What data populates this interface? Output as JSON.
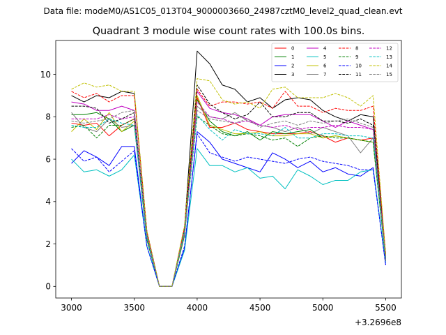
{
  "header": {
    "file_label": "Data file: modeM0/AS1C05_013T04_9000003660_24987cztM0_level2_quad_clean.evt"
  },
  "chart_data": {
    "type": "line",
    "title": "Quadrant 3 module wise count rates with 100.0s bins.",
    "xlabel": "",
    "ylabel": "",
    "x_offset_label": "+3.2696e8",
    "xlim": [
      2875,
      5625
    ],
    "ylim": [
      -0.55,
      11.6
    ],
    "grid": false,
    "legend_position": "top-right",
    "legend_columns": 4,
    "x_ticks": [
      3000,
      3500,
      4000,
      4500,
      5000,
      5500
    ],
    "x_tick_labels": [
      "3000",
      "3500",
      "4000",
      "4500",
      "5000",
      "5500"
    ],
    "y_ticks": [
      0,
      2,
      4,
      6,
      8,
      10
    ],
    "y_tick_labels": [
      "0",
      "2",
      "4",
      "6",
      "8",
      "10"
    ],
    "x": [
      3000,
      3100,
      3200,
      3300,
      3400,
      3500,
      3600,
      3700,
      3800,
      3900,
      4000,
      4100,
      4200,
      4300,
      4400,
      4500,
      4600,
      4700,
      4800,
      4900,
      5000,
      5100,
      5200,
      5300,
      5400,
      5500
    ],
    "series": [
      {
        "name": "0",
        "color": "#ff0000",
        "dash": "solid",
        "values": [
          7.7,
          7.6,
          7.7,
          7.1,
          7.6,
          7.9,
          2.4,
          0.0,
          0.0,
          2.6,
          8.9,
          7.5,
          7.5,
          7.7,
          7.4,
          7.3,
          7.2,
          7.2,
          7.2,
          7.3,
          7.1,
          6.8,
          7.0,
          6.9,
          7.0,
          1.4
        ]
      },
      {
        "name": "1",
        "color": "#008000",
        "dash": "solid",
        "values": [
          8.1,
          8.1,
          8.2,
          7.9,
          7.3,
          7.6,
          2.2,
          0.0,
          0.0,
          2.4,
          8.8,
          7.8,
          7.3,
          7.1,
          7.3,
          6.9,
          7.3,
          7.2,
          7.3,
          7.4,
          7.0,
          7.1,
          7.0,
          6.9,
          6.8,
          1.2
        ]
      },
      {
        "name": "2",
        "color": "#0000ff",
        "dash": "solid",
        "values": [
          5.8,
          6.4,
          6.1,
          5.7,
          6.6,
          6.6,
          1.9,
          0.0,
          0.0,
          1.8,
          7.3,
          6.8,
          6.0,
          5.8,
          5.6,
          5.4,
          6.3,
          6.0,
          5.6,
          5.9,
          5.4,
          5.6,
          5.3,
          5.2,
          5.6,
          1.0
        ]
      },
      {
        "name": "3",
        "color": "#000000",
        "dash": "solid",
        "values": [
          9.0,
          8.7,
          9.0,
          8.9,
          9.2,
          9.1,
          2.6,
          0.0,
          0.0,
          2.8,
          11.1,
          10.5,
          9.5,
          9.3,
          8.7,
          8.9,
          8.4,
          8.8,
          8.9,
          8.8,
          8.3,
          8.0,
          7.8,
          8.1,
          8.0,
          1.5
        ]
      },
      {
        "name": "4",
        "color": "#c000c0",
        "dash": "solid",
        "values": [
          8.7,
          8.6,
          8.3,
          8.3,
          8.5,
          8.3,
          2.3,
          0.0,
          0.0,
          2.6,
          9.2,
          8.4,
          8.2,
          8.1,
          7.9,
          7.6,
          8.0,
          8.1,
          8.1,
          8.1,
          7.8,
          7.5,
          7.8,
          7.6,
          7.4,
          1.4
        ]
      },
      {
        "name": "5",
        "color": "#00c0c0",
        "dash": "solid",
        "values": [
          6.0,
          5.4,
          5.5,
          5.2,
          5.5,
          6.2,
          1.9,
          0.0,
          0.0,
          1.7,
          6.5,
          5.7,
          5.7,
          5.4,
          5.6,
          5.1,
          5.2,
          4.6,
          5.5,
          5.2,
          4.8,
          5.0,
          5.0,
          5.4,
          5.5,
          1.1
        ]
      },
      {
        "name": "6",
        "color": "#c0c000",
        "dash": "solid",
        "values": [
          7.3,
          7.9,
          7.4,
          8.2,
          7.3,
          7.8,
          2.4,
          0.0,
          0.0,
          2.6,
          9.0,
          7.6,
          7.4,
          7.2,
          7.2,
          7.3,
          7.1,
          7.1,
          7.2,
          7.2,
          7.0,
          7.1,
          7.0,
          6.9,
          6.8,
          1.3
        ]
      },
      {
        "name": "7",
        "color": "#808080",
        "dash": "solid",
        "values": [
          8.2,
          7.5,
          7.3,
          7.9,
          7.5,
          7.6,
          2.4,
          0.0,
          0.0,
          2.5,
          8.5,
          8.0,
          7.9,
          8.2,
          7.8,
          7.6,
          7.5,
          7.3,
          7.5,
          7.2,
          7.5,
          7.3,
          7.1,
          6.3,
          7.0,
          1.2
        ]
      },
      {
        "name": "8",
        "color": "#ff0000",
        "dash": "dashed",
        "values": [
          9.2,
          8.9,
          9.1,
          8.7,
          9.0,
          9.0,
          2.6,
          0.0,
          0.0,
          2.8,
          9.3,
          8.5,
          8.7,
          8.7,
          8.6,
          8.7,
          8.4,
          9.2,
          8.5,
          8.5,
          8.2,
          8.4,
          8.3,
          8.3,
          8.5,
          1.5
        ]
      },
      {
        "name": "9",
        "color": "#008000",
        "dash": "dashed",
        "values": [
          7.5,
          7.6,
          7.0,
          7.6,
          7.6,
          7.9,
          2.3,
          0.0,
          0.0,
          2.6,
          8.0,
          7.6,
          7.2,
          7.1,
          7.2,
          7.1,
          6.9,
          7.0,
          6.6,
          7.0,
          7.1,
          7.0,
          7.0,
          6.9,
          6.8,
          1.3
        ]
      },
      {
        "name": "10",
        "color": "#0000ff",
        "dash": "dashed",
        "values": [
          6.5,
          5.9,
          6.1,
          5.4,
          5.9,
          6.4,
          1.9,
          0.0,
          0.0,
          1.9,
          7.2,
          6.3,
          6.1,
          5.9,
          6.1,
          6.0,
          5.9,
          5.8,
          6.0,
          6.1,
          5.9,
          5.8,
          5.7,
          5.5,
          5.5,
          1.0
        ]
      },
      {
        "name": "11",
        "color": "#000000",
        "dash": "dashed",
        "values": [
          8.5,
          8.5,
          8.4,
          7.7,
          7.9,
          8.2,
          2.4,
          0.0,
          0.0,
          2.6,
          9.5,
          8.6,
          8.2,
          7.9,
          8.1,
          8.7,
          8.0,
          8.0,
          8.2,
          8.2,
          7.8,
          7.8,
          7.7,
          7.9,
          7.6,
          1.3
        ]
      },
      {
        "name": "12",
        "color": "#c000c0",
        "dash": "dashed",
        "values": [
          7.9,
          7.9,
          7.9,
          8.1,
          7.9,
          8.0,
          2.4,
          0.0,
          0.0,
          2.6,
          8.7,
          8.0,
          7.9,
          7.7,
          7.8,
          7.6,
          7.5,
          7.6,
          7.4,
          7.5,
          7.5,
          7.6,
          7.5,
          7.5,
          7.4,
          1.3
        ]
      },
      {
        "name": "13",
        "color": "#00c0c0",
        "dash": "dashed",
        "values": [
          7.6,
          7.5,
          7.5,
          7.9,
          7.7,
          7.6,
          2.3,
          0.0,
          0.0,
          2.6,
          8.1,
          7.4,
          6.9,
          7.4,
          7.2,
          7.2,
          7.1,
          7.5,
          7.0,
          7.0,
          7.2,
          7.2,
          7.1,
          7.1,
          7.0,
          1.3
        ]
      },
      {
        "name": "14",
        "color": "#c0c000",
        "dash": "dashed",
        "values": [
          9.3,
          9.6,
          9.4,
          9.5,
          9.2,
          9.2,
          2.6,
          0.0,
          0.0,
          2.9,
          9.8,
          9.7,
          8.8,
          8.6,
          8.7,
          8.4,
          9.3,
          9.4,
          8.9,
          8.9,
          8.9,
          9.1,
          8.9,
          8.5,
          9.0,
          1.5
        ]
      },
      {
        "name": "15",
        "color": "#808080",
        "dash": "dashed",
        "values": [
          7.8,
          7.7,
          7.8,
          7.9,
          8.2,
          8.3,
          2.4,
          0.0,
          0.0,
          2.6,
          8.3,
          7.9,
          7.8,
          7.7,
          7.9,
          7.5,
          7.7,
          7.8,
          7.6,
          7.8,
          7.7,
          7.8,
          7.9,
          7.7,
          7.5,
          1.3
        ]
      }
    ]
  }
}
